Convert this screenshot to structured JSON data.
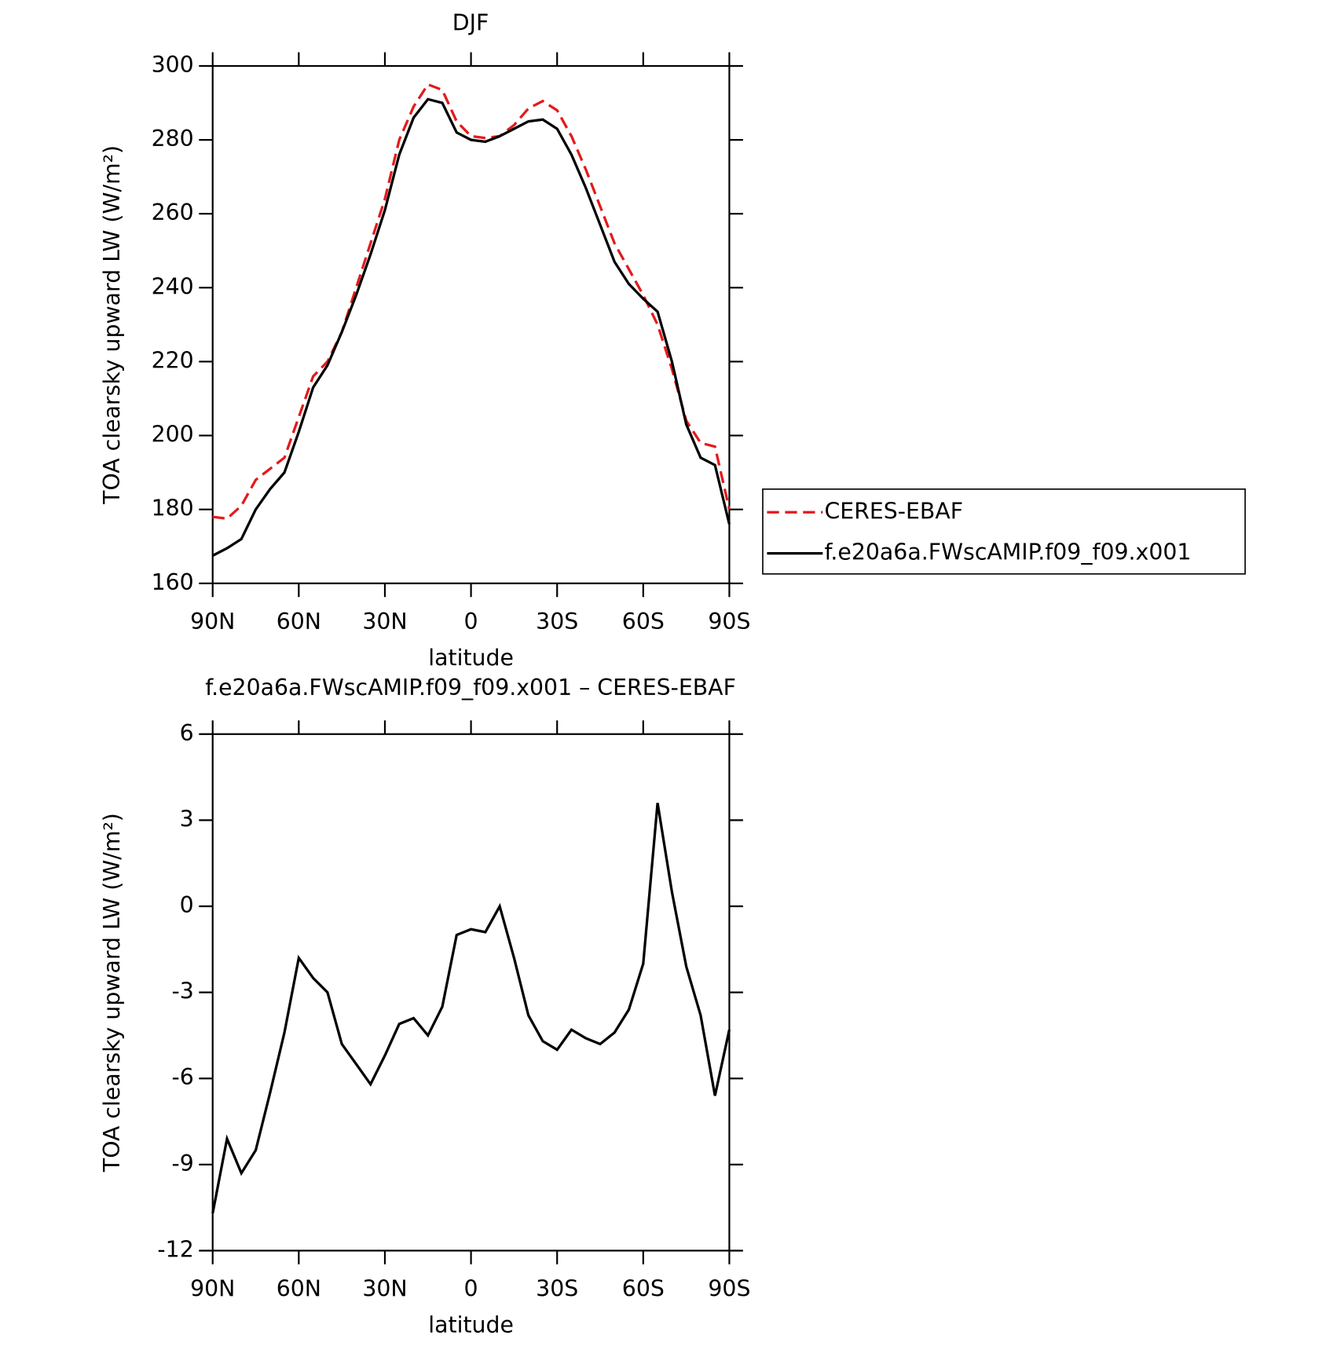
{
  "chart_data": [
    {
      "type": "line",
      "title": "DJF",
      "xlabel": "latitude",
      "ylabel": "TOA clearsky upward LW (W/m²)",
      "x": [
        90,
        85,
        80,
        75,
        70,
        65,
        60,
        55,
        50,
        45,
        40,
        35,
        30,
        25,
        20,
        15,
        10,
        5,
        0,
        -5,
        -10,
        -15,
        -20,
        -25,
        -30,
        -35,
        -40,
        -45,
        -50,
        -55,
        -60,
        -65,
        -70,
        -75,
        -80,
        -85,
        -90
      ],
      "xlim": [
        90,
        -90
      ],
      "xticks": [
        {
          "value": 90,
          "label": "90N"
        },
        {
          "value": 60,
          "label": "60N"
        },
        {
          "value": 30,
          "label": "30N"
        },
        0,
        {
          "value": -30,
          "label": "30S"
        },
        {
          "value": -60,
          "label": "60S"
        },
        {
          "value": -90,
          "label": "90S"
        }
      ],
      "ylim": [
        160,
        300
      ],
      "yticks": [
        160,
        180,
        200,
        220,
        240,
        260,
        280,
        300
      ],
      "legend": "right",
      "series": [
        {
          "name": "CERES-EBAF",
          "color": "#e41a1c",
          "dash": true,
          "values": [
            178,
            177.5,
            181,
            188,
            191,
            194,
            205,
            216,
            220,
            228,
            240,
            252,
            264,
            280,
            289,
            295,
            293.5,
            285,
            281,
            280.5,
            281,
            284,
            288.5,
            290.5,
            288,
            281,
            272,
            262,
            252,
            245,
            238,
            230,
            218,
            204,
            198,
            197,
            180
          ]
        },
        {
          "name": "f.e20a6a.FWscAMIP.f09_f09.x001",
          "color": "#000000",
          "dash": false,
          "values": [
            167.5,
            169.5,
            172,
            180,
            185.5,
            190,
            201,
            213,
            219,
            228,
            238,
            249,
            261,
            276,
            286,
            291,
            290,
            282,
            280,
            279.5,
            281,
            283,
            285,
            285.5,
            283,
            276,
            267,
            257,
            247,
            241,
            237,
            233.5,
            220,
            203,
            194,
            192,
            176
          ]
        }
      ]
    },
    {
      "type": "line",
      "title": "f.e20a6a.FWscAMIP.f09_f09.x001 – CERES-EBAF",
      "xlabel": "latitude",
      "ylabel": "TOA clearsky upward LW (W/m²)",
      "x": [
        90,
        85,
        80,
        75,
        70,
        65,
        60,
        55,
        50,
        45,
        40,
        35,
        30,
        25,
        20,
        15,
        10,
        5,
        0,
        -5,
        -10,
        -15,
        -20,
        -25,
        -30,
        -35,
        -40,
        -45,
        -50,
        -55,
        -60,
        -65,
        -70,
        -75,
        -80,
        -85,
        -90
      ],
      "xlim": [
        90,
        -90
      ],
      "xticks": [
        {
          "value": 90,
          "label": "90N"
        },
        {
          "value": 60,
          "label": "60N"
        },
        {
          "value": 30,
          "label": "30N"
        },
        0,
        {
          "value": -30,
          "label": "30S"
        },
        {
          "value": -60,
          "label": "60S"
        },
        {
          "value": -90,
          "label": "90S"
        }
      ],
      "ylim": [
        -12,
        6
      ],
      "yticks": [
        -12,
        -9,
        -6,
        -3,
        0,
        3,
        6
      ],
      "series": [
        {
          "color": "#000000",
          "dash": false,
          "values": [
            -10.7,
            -8.1,
            -9.3,
            -8.5,
            -6.5,
            -4.4,
            -1.8,
            -2.5,
            -3.0,
            -4.8,
            -5.5,
            -6.2,
            -5.2,
            -4.1,
            -3.9,
            -4.5,
            -3.5,
            -1.0,
            -0.8,
            -0.9,
            0,
            -1.8,
            -3.8,
            -4.7,
            -5.0,
            -4.3,
            -4.6,
            -4.8,
            -4.4,
            -3.6,
            -2.0,
            3.6,
            0.5,
            -2.1,
            -3.8,
            -6.6,
            -4.3
          ]
        }
      ]
    }
  ]
}
